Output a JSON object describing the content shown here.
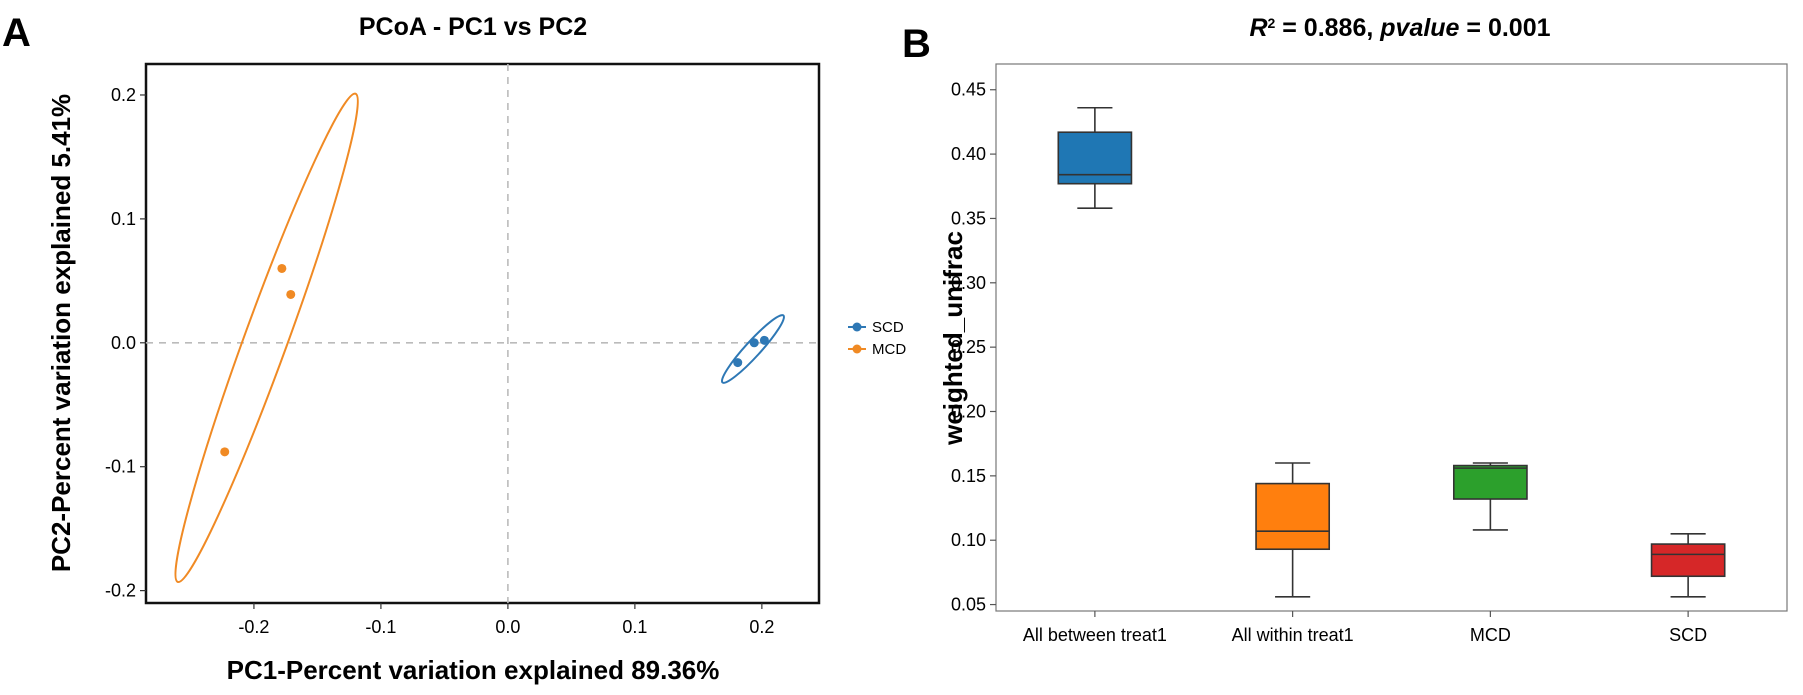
{
  "panels": {
    "a": "A",
    "b": "B"
  },
  "chart_data": [
    {
      "type": "scatter",
      "title": "PCoA - PC1 vs PC2",
      "xlabel": "PC1-Percent variation explained 89.36%",
      "ylabel": "PC2-Percent variation explained 5.41%",
      "xlim": [
        -0.285,
        0.245
      ],
      "ylim": [
        -0.21,
        0.225
      ],
      "xticks": [
        -0.2,
        -0.1,
        0.0,
        0.1,
        0.2
      ],
      "xtick_labels": [
        "-0.2",
        "-0.1",
        "0.0",
        "0.1",
        "0.2"
      ],
      "yticks": [
        -0.2,
        -0.1,
        0.0,
        0.1,
        0.2
      ],
      "ytick_labels": [
        "-0.2",
        "-0.1",
        "0.0",
        "0.1",
        "0.2"
      ],
      "reference_lines": {
        "x": 0,
        "y": 0,
        "style": "dashed"
      },
      "grid": false,
      "legend_position": "right",
      "series": [
        {
          "name": "SCD",
          "color": "#2e78b5",
          "points": [
            [
              0.181,
              -0.016
            ],
            [
              0.194,
              0.0
            ],
            [
              0.202,
              0.002
            ]
          ],
          "ellipse": {
            "cx": 0.193,
            "cy": -0.005,
            "half_length_x": 0.024,
            "half_length_y": 0.027,
            "half_width": 0.006
          }
        },
        {
          "name": "MCD",
          "color": "#f08a24",
          "points": [
            [
              -0.178,
              0.06
            ],
            [
              -0.171,
              0.039
            ],
            [
              -0.223,
              -0.088
            ]
          ],
          "ellipse": {
            "cx": -0.19,
            "cy": 0.004,
            "half_length_x": 0.07,
            "half_length_y": 0.197,
            "half_width": 0.017
          }
        }
      ]
    },
    {
      "type": "box",
      "title_parts": [
        {
          "text": "R",
          "style": "italic"
        },
        {
          "text": "2",
          "style": "sup"
        },
        {
          "text": " = 0.886, ",
          "style": "normal"
        },
        {
          "text": "pvalue",
          "style": "italic"
        },
        {
          "text": " = 0.001",
          "style": "normal"
        }
      ],
      "xlabel": "",
      "ylabel": "weighted_unifrac",
      "ylim": [
        0.045,
        0.47
      ],
      "yticks": [
        0.05,
        0.1,
        0.15,
        0.2,
        0.25,
        0.3,
        0.35,
        0.4,
        0.45
      ],
      "ytick_labels": [
        "0.05",
        "0.10",
        "0.15",
        "0.20",
        "0.25",
        "0.30",
        "0.35",
        "0.40",
        "0.45"
      ],
      "grid": false,
      "categories": [
        "All between treat1",
        "All within treat1",
        "MCD",
        "SCD"
      ],
      "boxes": [
        {
          "name": "All between treat1",
          "color": "#1f77b4",
          "min": 0.358,
          "q1": 0.377,
          "median": 0.384,
          "q3": 0.417,
          "max": 0.436
        },
        {
          "name": "All within treat1",
          "color": "#ff7f0e",
          "min": 0.056,
          "q1": 0.093,
          "median": 0.107,
          "q3": 0.144,
          "max": 0.16
        },
        {
          "name": "MCD",
          "color": "#2ca02c",
          "min": 0.108,
          "q1": 0.132,
          "median": 0.156,
          "q3": 0.158,
          "max": 0.16
        },
        {
          "name": "SCD",
          "color": "#d62728",
          "min": 0.056,
          "q1": 0.072,
          "median": 0.089,
          "q3": 0.097,
          "max": 0.105
        }
      ]
    }
  ]
}
